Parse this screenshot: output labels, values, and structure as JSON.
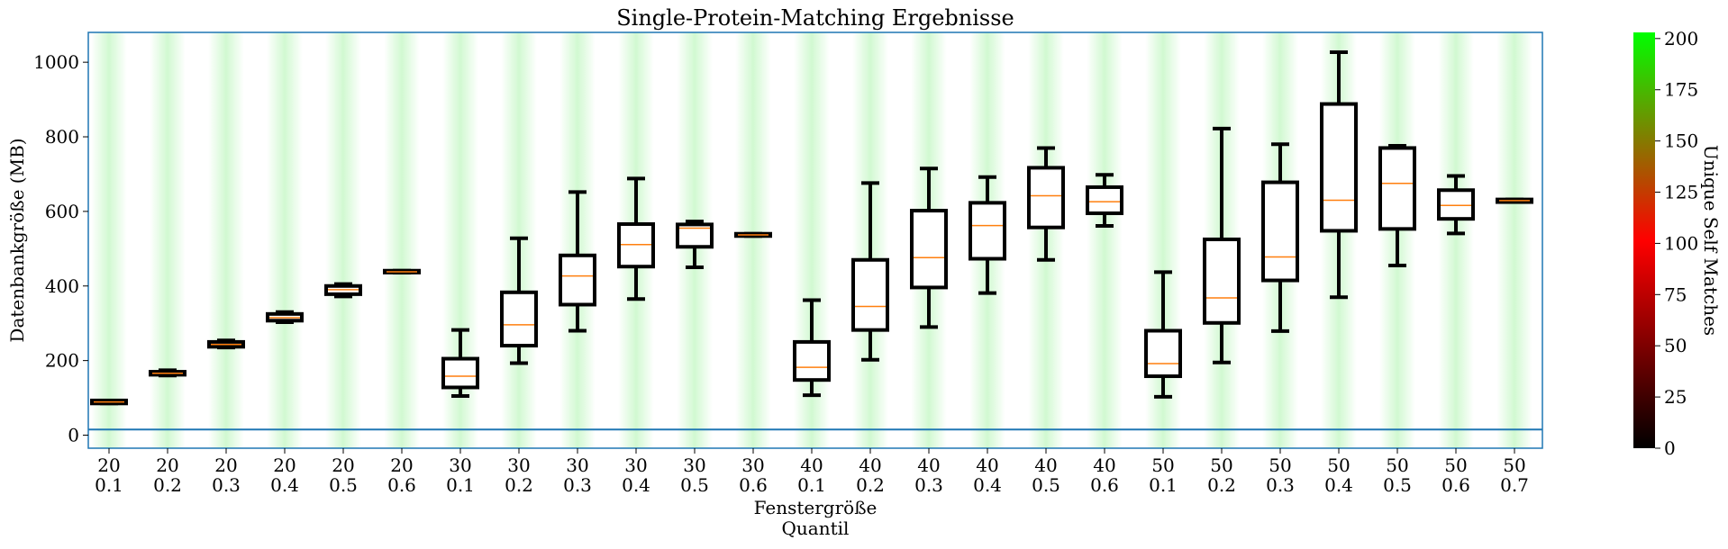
{
  "chart_data": {
    "type": "box",
    "title": "Single-Protein-Matching Ergebnisse",
    "ylabel": "Datenbankgröße (MB)",
    "xlabel_line1": "Fenstergröße",
    "xlabel_line2": "Quantil",
    "ylim": [
      -35,
      1080
    ],
    "yticks": [
      0,
      200,
      400,
      600,
      800,
      1000
    ],
    "reference_line_y": 15,
    "colorbar": {
      "label": "Unique Self Matches",
      "min": 0,
      "max": 203,
      "ticks": [
        0,
        25,
        50,
        75,
        100,
        125,
        150,
        175,
        200
      ],
      "colors": [
        "#000000",
        "#ff0000",
        "#00ff00"
      ]
    },
    "colors": {
      "box": "#000000",
      "median": "#ff7f0e",
      "axes": "#1f77b4",
      "band": "#00dd00"
    },
    "categories": [
      {
        "window": "20",
        "quantile": "0.1"
      },
      {
        "window": "20",
        "quantile": "0.2"
      },
      {
        "window": "20",
        "quantile": "0.3"
      },
      {
        "window": "20",
        "quantile": "0.4"
      },
      {
        "window": "20",
        "quantile": "0.5"
      },
      {
        "window": "20",
        "quantile": "0.6"
      },
      {
        "window": "30",
        "quantile": "0.1"
      },
      {
        "window": "30",
        "quantile": "0.2"
      },
      {
        "window": "30",
        "quantile": "0.3"
      },
      {
        "window": "30",
        "quantile": "0.4"
      },
      {
        "window": "30",
        "quantile": "0.5"
      },
      {
        "window": "30",
        "quantile": "0.6"
      },
      {
        "window": "40",
        "quantile": "0.1"
      },
      {
        "window": "40",
        "quantile": "0.2"
      },
      {
        "window": "40",
        "quantile": "0.3"
      },
      {
        "window": "40",
        "quantile": "0.4"
      },
      {
        "window": "40",
        "quantile": "0.5"
      },
      {
        "window": "40",
        "quantile": "0.6"
      },
      {
        "window": "50",
        "quantile": "0.1"
      },
      {
        "window": "50",
        "quantile": "0.2"
      },
      {
        "window": "50",
        "quantile": "0.3"
      },
      {
        "window": "50",
        "quantile": "0.4"
      },
      {
        "window": "50",
        "quantile": "0.5"
      },
      {
        "window": "50",
        "quantile": "0.6"
      },
      {
        "window": "50",
        "quantile": "0.7"
      }
    ],
    "boxes": [
      {
        "whislo": 85,
        "q1": 85,
        "med": 89,
        "q3": 93,
        "whishi": 93
      },
      {
        "whislo": 160,
        "q1": 162,
        "med": 166,
        "q3": 170,
        "whishi": 174
      },
      {
        "whislo": 235,
        "q1": 237,
        "med": 243,
        "q3": 250,
        "whishi": 254
      },
      {
        "whislo": 303,
        "q1": 307,
        "med": 315,
        "q3": 325,
        "whishi": 330
      },
      {
        "whislo": 372,
        "q1": 378,
        "med": 390,
        "q3": 400,
        "whishi": 405
      },
      {
        "whislo": 436,
        "q1": 436,
        "med": 438,
        "q3": 441,
        "whishi": 441
      },
      {
        "whislo": 105,
        "q1": 128,
        "med": 158,
        "q3": 205,
        "whishi": 282
      },
      {
        "whislo": 193,
        "q1": 240,
        "med": 296,
        "q3": 383,
        "whishi": 528
      },
      {
        "whislo": 280,
        "q1": 350,
        "med": 427,
        "q3": 482,
        "whishi": 652
      },
      {
        "whislo": 365,
        "q1": 452,
        "med": 511,
        "q3": 566,
        "whishi": 688
      },
      {
        "whislo": 450,
        "q1": 505,
        "med": 555,
        "q3": 565,
        "whishi": 573
      },
      {
        "whislo": 534,
        "q1": 534,
        "med": 537,
        "q3": 540,
        "whishi": 540
      },
      {
        "whislo": 107,
        "q1": 148,
        "med": 182,
        "q3": 250,
        "whishi": 362
      },
      {
        "whislo": 202,
        "q1": 282,
        "med": 345,
        "q3": 470,
        "whishi": 676
      },
      {
        "whislo": 290,
        "q1": 396,
        "med": 476,
        "q3": 602,
        "whishi": 715
      },
      {
        "whislo": 381,
        "q1": 473,
        "med": 562,
        "q3": 623,
        "whishi": 692
      },
      {
        "whislo": 470,
        "q1": 557,
        "med": 642,
        "q3": 717,
        "whishi": 770
      },
      {
        "whislo": 561,
        "q1": 595,
        "med": 626,
        "q3": 665,
        "whishi": 698
      },
      {
        "whislo": 103,
        "q1": 158,
        "med": 192,
        "q3": 280,
        "whishi": 437
      },
      {
        "whislo": 195,
        "q1": 301,
        "med": 368,
        "q3": 525,
        "whishi": 822
      },
      {
        "whislo": 279,
        "q1": 415,
        "med": 478,
        "q3": 678,
        "whishi": 780
      },
      {
        "whislo": 370,
        "q1": 548,
        "med": 630,
        "q3": 888,
        "whishi": 1027
      },
      {
        "whislo": 455,
        "q1": 553,
        "med": 675,
        "q3": 770,
        "whishi": 776
      },
      {
        "whislo": 541,
        "q1": 580,
        "med": 616,
        "q3": 657,
        "whishi": 695
      },
      {
        "whislo": 625,
        "q1": 625,
        "med": 629,
        "q3": 632,
        "whishi": 632
      }
    ]
  }
}
